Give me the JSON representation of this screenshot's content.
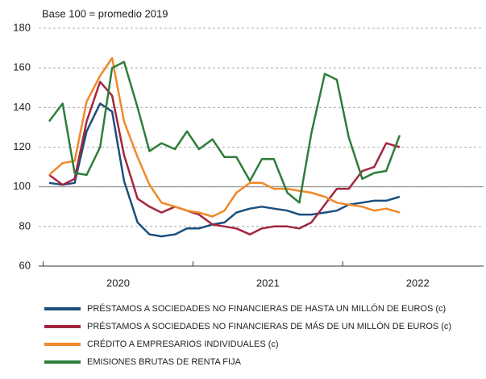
{
  "chart_data": {
    "type": "line",
    "y_label": "Base 100 = promedio 2019",
    "x": [
      2020.04,
      2020.13,
      2020.21,
      2020.29,
      2020.38,
      2020.46,
      2020.54,
      2020.63,
      2020.71,
      2020.79,
      2020.88,
      2020.96,
      2021.04,
      2021.13,
      2021.21,
      2021.29,
      2021.38,
      2021.46,
      2021.54,
      2021.63,
      2021.71,
      2021.79,
      2021.88,
      2021.96,
      2022.04,
      2022.13,
      2022.21,
      2022.29,
      2022.38
    ],
    "xlim": [
      2019.97,
      2022.94
    ],
    "xticks": [
      2020,
      2021,
      2022
    ],
    "ylim": [
      60,
      180
    ],
    "yticks": [
      60,
      80,
      100,
      120,
      140,
      160,
      180
    ],
    "grid": true,
    "hline": 100,
    "series": [
      {
        "name": "PRÉSTAMOS A SOCIEDADES NO FINANCIERAS DE HASTA UN MILLÓN DE EUROS (c)",
        "color": "#1b4f7c",
        "values": [
          102,
          101,
          102,
          128,
          142,
          138,
          103,
          82,
          76,
          75,
          76,
          79,
          79,
          81,
          82,
          87,
          89,
          90,
          89,
          88,
          86,
          86,
          87,
          88,
          91,
          92,
          93,
          93,
          95
        ]
      },
      {
        "name": "PRÉSTAMOS A SOCIEDADES NO FINANCIERAS DE MÁS DE UN MILLÓN DE EUROS (c)",
        "color": "#a3263f",
        "values": [
          106,
          101,
          104,
          133,
          153,
          146,
          116,
          94,
          90,
          87,
          90,
          88,
          86,
          81,
          80,
          79,
          76,
          79,
          80,
          80,
          79,
          82,
          91,
          99,
          99,
          108,
          110,
          122,
          120
        ]
      },
      {
        "name": "CRÉDITO A EMPRESARIOS INDIVIDUALES (c)",
        "color": "#f0892a",
        "values": [
          106,
          112,
          113,
          143,
          156,
          165,
          133,
          115,
          101,
          92,
          90,
          88,
          87,
          85,
          88,
          97,
          102,
          102,
          99,
          99,
          98,
          97,
          95,
          92,
          91,
          90,
          88,
          89,
          87
        ]
      },
      {
        "name": "EMISIONES BRUTAS DE RENTA FIJA",
        "color": "#2e7d3a",
        "values": [
          133,
          142,
          107,
          106,
          120,
          160,
          163,
          140,
          118,
          122,
          119,
          128,
          119,
          124,
          115,
          115,
          103,
          114,
          114,
          97,
          92,
          127,
          157,
          154,
          125,
          104,
          107,
          108,
          126
        ]
      }
    ]
  }
}
